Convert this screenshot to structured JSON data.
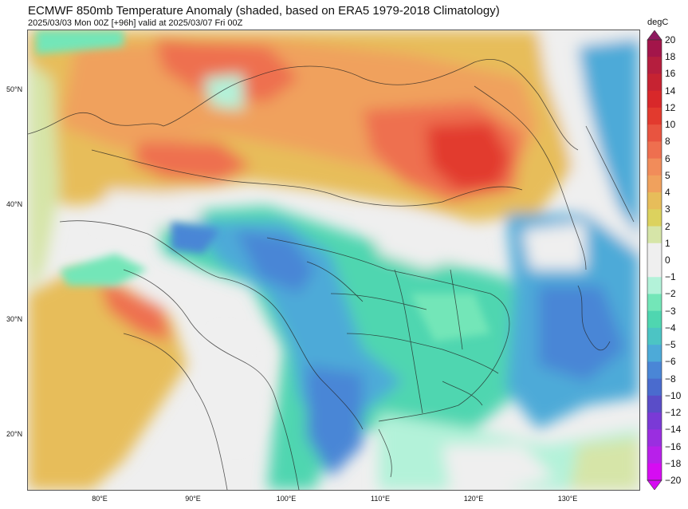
{
  "header": {
    "title": "ECMWF 850mb Temperature Anomaly (shaded, based on ERA5 1979-2018 Climatology)",
    "subtitle": "2025/03/03 Mon 00Z [+96h] valid at 2025/03/07 Fri 00Z"
  },
  "map": {
    "lat_labels": [
      "50°N",
      "40°N",
      "30°N",
      "20°N"
    ],
    "lon_labels": [
      "80°E",
      "90°E",
      "100°E",
      "110°E",
      "120°E",
      "130°E"
    ],
    "lat_range": [
      15,
      55
    ],
    "lon_range": [
      72.5,
      138
    ]
  },
  "colorbar": {
    "unit": "degC",
    "levels": [
      {
        "label": "20",
        "color": "#8e1a5f"
      },
      {
        "label": "18",
        "color": "#a3154a"
      },
      {
        "label": "16",
        "color": "#b51e3e"
      },
      {
        "label": "14",
        "color": "#c62332"
      },
      {
        "label": "12",
        "color": "#d8282a"
      },
      {
        "label": "10",
        "color": "#e23a2e"
      },
      {
        "label": "8",
        "color": "#e85440"
      },
      {
        "label": "6",
        "color": "#ee6f4f"
      },
      {
        "label": "5",
        "color": "#f18c5a"
      },
      {
        "label": "4",
        "color": "#f0a15d"
      },
      {
        "label": "3",
        "color": "#e7bd5a"
      },
      {
        "label": "2",
        "color": "#dcd25e"
      },
      {
        "label": "1",
        "color": "#d6e5a8"
      },
      {
        "label": "0",
        "color": "#efefef"
      },
      {
        "label": "−1",
        "color": "#efefef"
      },
      {
        "label": "−2",
        "color": "#b3f2d9"
      },
      {
        "label": "−3",
        "color": "#73e6b8"
      },
      {
        "label": "−4",
        "color": "#4fd6b0"
      },
      {
        "label": "−5",
        "color": "#4cc4c4"
      },
      {
        "label": "−6",
        "color": "#4daad8"
      },
      {
        "label": "−8",
        "color": "#4a86d6"
      },
      {
        "label": "−10",
        "color": "#4a6bce"
      },
      {
        "label": "−12",
        "color": "#5a4dc8"
      },
      {
        "label": "−14",
        "color": "#7a3ad6"
      },
      {
        "label": "−16",
        "color": "#9a2ee0"
      },
      {
        "label": "−18",
        "color": "#b820ea"
      },
      {
        "label": "−20",
        "color": "#d60cf2"
      }
    ]
  }
}
